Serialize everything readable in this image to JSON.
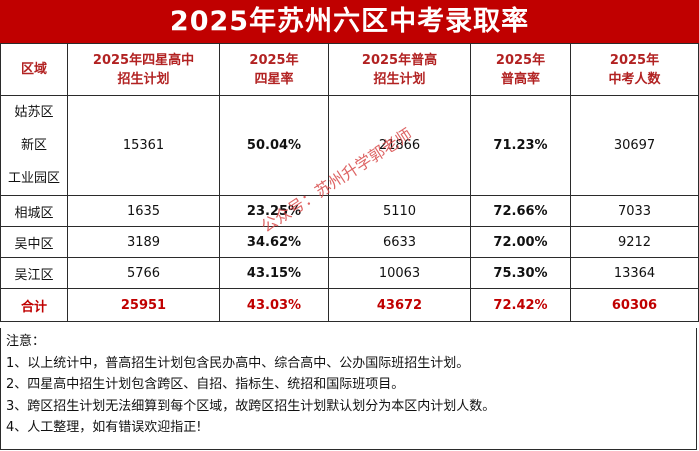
{
  "title": "2025年苏州六区中考录取率",
  "headers": {
    "region": "区域",
    "star_plan_l1": "2025年四星高中",
    "star_plan_l2": "招生计划",
    "star_rate_l1": "2025年",
    "star_rate_l2": "四星率",
    "general_plan_l1": "2025年普高",
    "general_plan_l2": "招生计划",
    "general_rate_l1": "2025年",
    "general_rate_l2": "普高率",
    "exam_count_l1": "2025年",
    "exam_count_l2": "中考人数"
  },
  "merged_row": {
    "regions": [
      "姑苏区",
      "新区",
      "工业园区"
    ],
    "star_plan": "15361",
    "star_rate": "50.04%",
    "general_plan": "21866",
    "general_rate": "71.23%",
    "exam_count": "30697"
  },
  "rows": [
    {
      "region": "相城区",
      "star_plan": "1635",
      "star_rate": "23.25%",
      "general_plan": "5110",
      "general_rate": "72.66%",
      "exam_count": "7033"
    },
    {
      "region": "吴中区",
      "star_plan": "3189",
      "star_rate": "34.62%",
      "general_plan": "6633",
      "general_rate": "72.00%",
      "exam_count": "9212"
    },
    {
      "region": "吴江区",
      "star_plan": "5766",
      "star_rate": "43.15%",
      "general_plan": "10063",
      "general_rate": "75.30%",
      "exam_count": "13364"
    }
  ],
  "total": {
    "region": "合计",
    "star_plan": "25951",
    "star_rate": "43.03%",
    "general_plan": "43672",
    "general_rate": "72.42%",
    "exam_count": "60306"
  },
  "notes": [
    "注意：",
    "1、以上统计中，普高招生计划包含民办高中、综合高中、公办国际班招生计划。",
    "2、四星高中招生计划包含跨区、自招、指标生、统招和国际班项目。",
    "3、跨区招生计划无法细算到每个区域，故跨区招生计划默认划分为本区内计划人数。",
    "4、人工整理，如有错误欢迎指正!"
  ],
  "watermark": "公众号：苏州升学郭老师",
  "colors": {
    "title_bg": "#c00000",
    "header_text": "#b22222",
    "total_text": "#c00000"
  }
}
